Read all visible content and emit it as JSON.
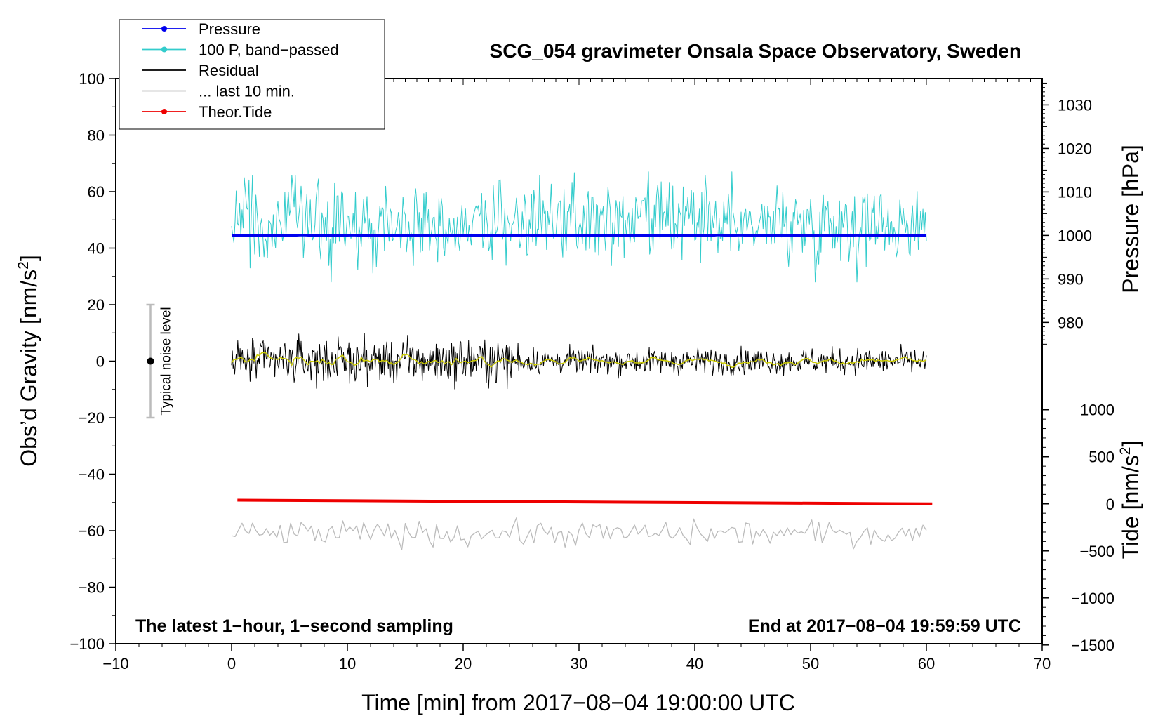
{
  "chart_data": {
    "type": "line",
    "title": "SCG_054 gravimeter Onsala Space Observatory, Sweden",
    "xlabel": "Time [min] from 2017−08−04 19:00:00 UTC",
    "ylabel_left": "Obs’d Gravity [nm/s",
    "ylabel_left_sup": "2",
    "ylabel_left_end": "]",
    "ylabel_right_pressure": "Pressure [hPa]",
    "ylabel_right_tide": "Tide [nm/s",
    "ylabel_right_tide_sup": "2",
    "ylabel_right_tide_end": "]",
    "xlim": [
      -10,
      70
    ],
    "ylim_left": [
      -100,
      100
    ],
    "xticks": [
      "−10",
      "0",
      "10",
      "20",
      "30",
      "40",
      "50",
      "60",
      "70"
    ],
    "xtick_values": [
      -10,
      0,
      10,
      20,
      30,
      40,
      50,
      60,
      70
    ],
    "yticks_left": [
      "−100",
      "−80",
      "−60",
      "−40",
      "−20",
      "0",
      "20",
      "40",
      "60",
      "80",
      "100"
    ],
    "ytick_left_values": [
      -100,
      -80,
      -60,
      -40,
      -20,
      0,
      20,
      40,
      60,
      80,
      100
    ],
    "pressure_axis": {
      "ticks": [
        "980",
        "990",
        "1000",
        "1010",
        "1020",
        "1030"
      ],
      "values": [
        980,
        990,
        1000,
        1010,
        1020,
        1030
      ],
      "gravity_at_1000": 44.5,
      "gravity_per_hpa": 1.54
    },
    "tide_axis": {
      "ticks": [
        "−1500",
        "−1000",
        "−500",
        "0",
        "500",
        "1000"
      ],
      "values": [
        -1500,
        -1000,
        -500,
        0,
        500,
        1000
      ],
      "gravity_at_0": -50.5,
      "gravity_per_unit": 0.0333
    },
    "legend": [
      {
        "label": "Pressure",
        "color": "#0000ee",
        "marker": true
      },
      {
        "label": "100 P, band−passed",
        "color": "#33cccc",
        "marker": true
      },
      {
        "label": "Residual",
        "color": "#000000",
        "marker": false
      },
      {
        "label": "... last 10 min.",
        "color": "#bbbbbb",
        "marker": false
      },
      {
        "label": "Theor.Tide",
        "color": "#ee0000",
        "marker": true
      }
    ],
    "series": [
      {
        "name": "Pressure",
        "color": "#0000ee",
        "x_range": [
          0,
          60
        ],
        "level": 44.5,
        "pressure_hpa": 999.9
      },
      {
        "name": "100 P, band−passed",
        "color": "#33cccc",
        "x_range": [
          0,
          60
        ],
        "mean": 49,
        "min": 28,
        "max": 67
      },
      {
        "name": "Residual",
        "color": "#000000",
        "x_range": [
          0,
          60
        ],
        "mean": 0,
        "min": -11,
        "max": 10
      },
      {
        "name": "Residual smoothed",
        "color": "#cccc00",
        "x_range": [
          0,
          60
        ],
        "mean": 0,
        "min": -3,
        "max": 3
      },
      {
        "name": "... last 10 min.",
        "color": "#bbbbbb",
        "x_range": [
          0,
          60
        ],
        "mean": -61,
        "min": -68,
        "max": -55
      },
      {
        "name": "Theor.Tide",
        "color": "#ee0000",
        "x": [
          0.5,
          60.5
        ],
        "y": [
          -49.2,
          -50.5
        ]
      }
    ],
    "noise_bar": {
      "label": "Typical noise level",
      "x": -7,
      "center": 0,
      "low": -20,
      "high": 20
    },
    "annotation_left": "The latest 1−hour, 1−second sampling",
    "annotation_right": "End at 2017−08−04 19:59:59 UTC"
  }
}
